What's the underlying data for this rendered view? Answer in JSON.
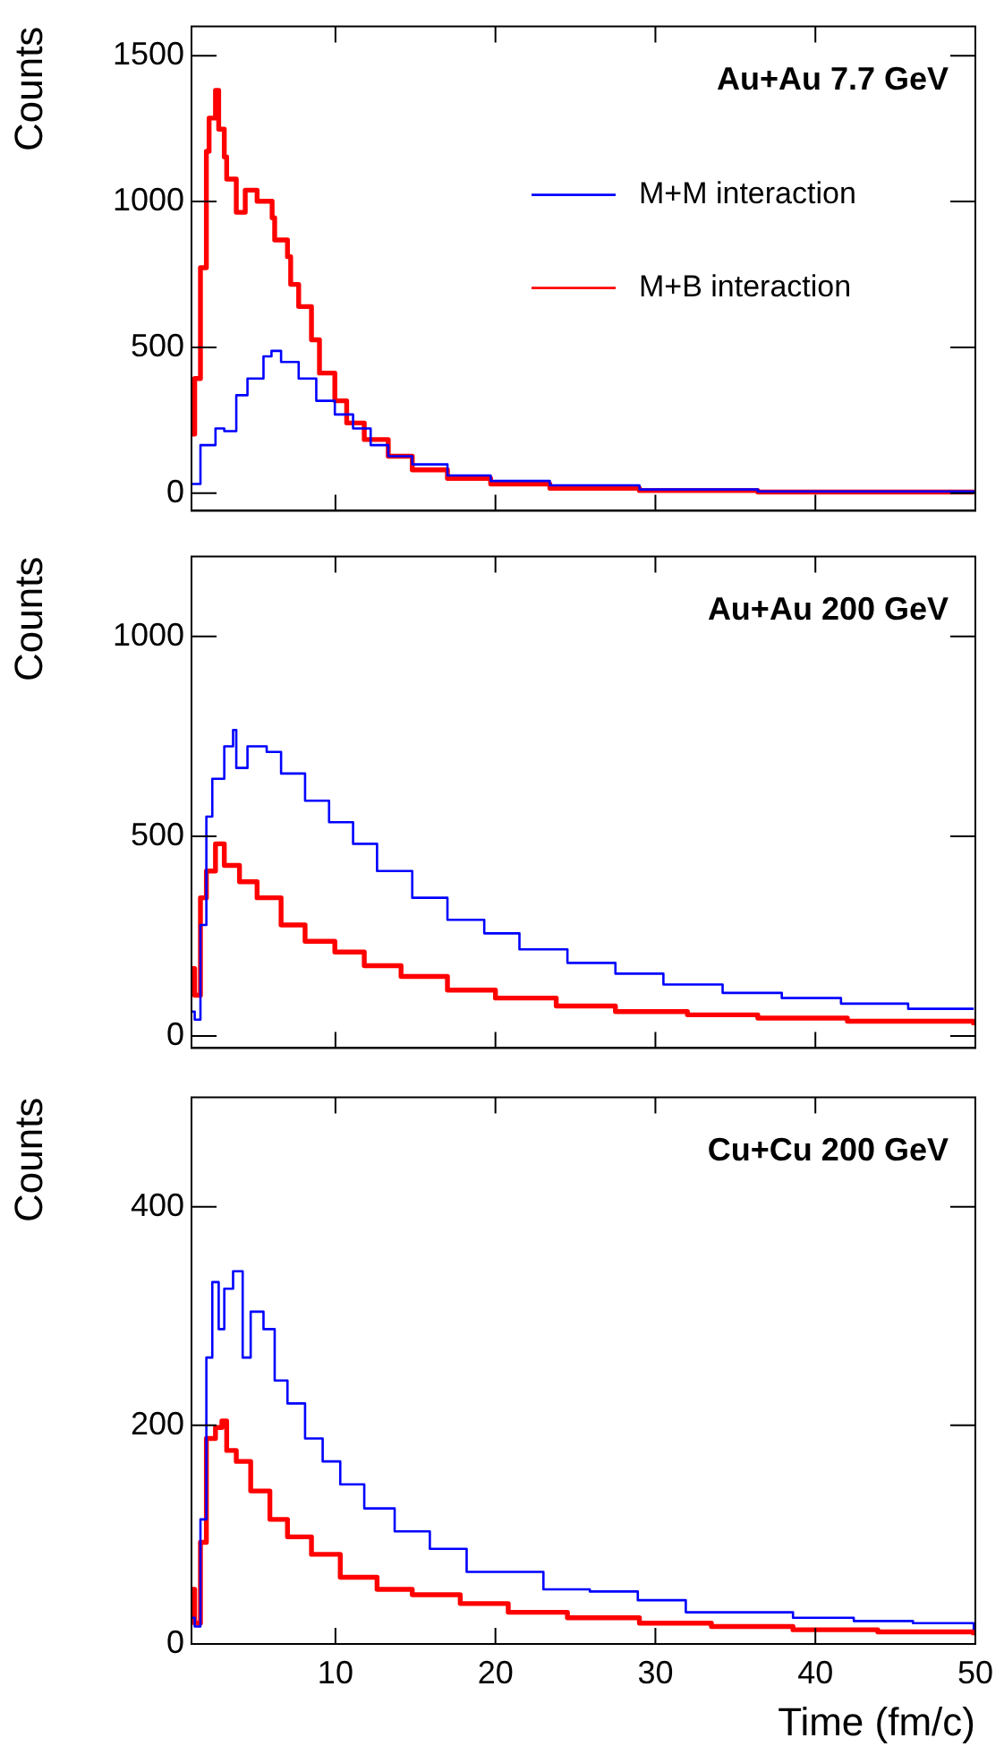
{
  "chart_data": [
    {
      "type": "step",
      "title": "Au+Au 7.7 GeV",
      "ylabel": "Counts",
      "xlim": [
        1,
        50
      ],
      "xticks": [
        10,
        20,
        30,
        40,
        50
      ],
      "ylim": [
        -60,
        1600
      ],
      "yticks": [
        0,
        500,
        1000,
        1500
      ],
      "tick_labels": "y",
      "legend": "top right",
      "grid": false,
      "series": [
        {
          "name": "M+M interaction",
          "color": "#0000ff",
          "x": [
            1,
            1.56,
            2.5,
            3.05,
            3.8,
            4.5,
            5.5,
            6.0,
            6.6,
            7.7,
            8.8,
            9.96,
            11.1,
            12.2,
            13.3,
            14.8,
            17.0,
            19.7,
            23.4,
            29,
            36.4,
            49.9
          ],
          "values": [
            32,
            165,
            222,
            213,
            336,
            393,
            469,
            488,
            450,
            393,
            317,
            270,
            222,
            165,
            127,
            99,
            61,
            42,
            27,
            13,
            6,
            2
          ]
        },
        {
          "name": "M+B interaction",
          "color": "#ff0000",
          "x": [
            1,
            1.2,
            1.56,
            1.93,
            2.1,
            2.5,
            2.7,
            3.05,
            3.2,
            3.8,
            4.36,
            5.1,
            6.04,
            6.2,
            7.0,
            7.2,
            7.7,
            8.5,
            9.0,
            9.96,
            10.7,
            11.8,
            13.3,
            14.8,
            17.0,
            19.7,
            23.4,
            29,
            36.4,
            49.9
          ],
          "values": [
            203,
            393,
            773,
            1172,
            1286,
            1381,
            1248,
            1153,
            1077,
            963,
            1039,
            1001,
            944,
            868,
            811,
            716,
            640,
            526,
            412,
            317,
            241,
            184,
            127,
            80,
            51,
            32,
            17,
            9,
            4,
            0
          ]
        }
      ]
    },
    {
      "type": "step",
      "title": "Au+Au 200 GeV",
      "ylabel": "Counts",
      "xlim": [
        1,
        50
      ],
      "xticks": [
        10,
        20,
        30,
        40,
        50
      ],
      "ylim": [
        -30,
        1200
      ],
      "yticks": [
        0,
        500,
        1000
      ],
      "tick_labels": "y",
      "grid": false,
      "series": [
        {
          "color": "#0000ff",
          "x": [
            1,
            1.2,
            1.56,
            1.93,
            2.3,
            3.05,
            3.6,
            3.8,
            4.5,
            5.7,
            6.6,
            8.1,
            9.6,
            11.1,
            12.6,
            14.8,
            17.0,
            19.3,
            21.5,
            24.5,
            27.5,
            30.5,
            34.2,
            37.9,
            41.6,
            45.8,
            49.9
          ],
          "values": [
            61,
            41,
            278,
            549,
            644,
            725,
            766,
            671,
            725,
            711,
            657,
            589,
            535,
            481,
            413,
            346,
            291,
            257,
            217,
            183,
            156,
            129,
            108,
            95,
            81,
            68,
            68
          ]
        },
        {
          "color": "#ff0000",
          "x": [
            1,
            1.2,
            1.56,
            1.93,
            2.5,
            3.05,
            4.0,
            5.1,
            6.6,
            8.1,
            9.96,
            11.8,
            14.1,
            17.0,
            20.0,
            23.8,
            27.5,
            32.0,
            36.4,
            42.0,
            49.9
          ],
          "values": [
            169,
            102,
            346,
            413,
            481,
            427,
            386,
            346,
            278,
            237,
            210,
            176,
            149,
            115,
            95,
            75,
            61,
            53,
            45,
            37,
            27
          ]
        }
      ]
    },
    {
      "type": "step",
      "title": "Cu+Cu 200 GeV",
      "ylabel": "Counts",
      "xlabel": "Time (fm/c)",
      "xlim": [
        1,
        50
      ],
      "xticks": [
        10,
        20,
        30,
        40,
        50
      ],
      "ylim": [
        0,
        500
      ],
      "yticks": [
        0,
        200,
        400
      ],
      "grid": false,
      "series": [
        {
          "color": "#0000ff",
          "x": [
            1,
            1.2,
            1.56,
            1.93,
            2.3,
            2.7,
            3.05,
            3.6,
            4.2,
            4.7,
            5.5,
            6.2,
            7.0,
            8.1,
            9.2,
            10.3,
            11.8,
            13.7,
            15.9,
            18.2,
            20.8,
            23.0,
            25.9,
            28.9,
            31.9,
            34.9,
            38.6,
            42.4,
            46.1,
            49.9
          ],
          "values": [
            24,
            16,
            114,
            262,
            331,
            288,
            325,
            341,
            262,
            304,
            288,
            241,
            220,
            188,
            167,
            146,
            124,
            103,
            87,
            66,
            66,
            50,
            48,
            40,
            29,
            29,
            24,
            21,
            19,
            13
          ]
        },
        {
          "color": "#ff0000",
          "x": [
            1,
            1.2,
            1.56,
            1.93,
            2.5,
            2.9,
            3.2,
            3.8,
            4.7,
            5.9,
            7.0,
            8.5,
            10.3,
            12.6,
            14.8,
            17.8,
            20.8,
            24.5,
            29.0,
            33.5,
            38.6,
            43.9,
            49.9
          ],
          "values": [
            50,
            19,
            93,
            188,
            198,
            204,
            177,
            167,
            140,
            114,
            98,
            82,
            61,
            50,
            45,
            37,
            29,
            24,
            19,
            16,
            13,
            11,
            8
          ]
        }
      ]
    }
  ]
}
